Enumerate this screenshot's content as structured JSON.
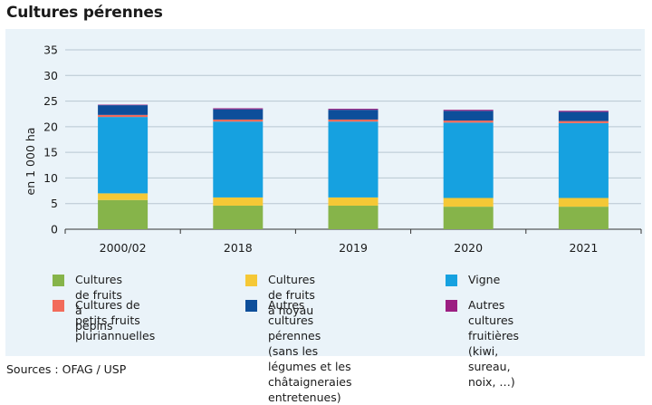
{
  "title": "Cultures pérennes",
  "source": "Sources : OFAG / USP",
  "chart_data": {
    "type": "bar",
    "stacked": true,
    "title": "Cultures pérennes",
    "xlabel": "",
    "ylabel": "en 1 000 ha",
    "ylim": [
      0,
      35
    ],
    "yticks": [
      0,
      5,
      10,
      15,
      20,
      25,
      30,
      35
    ],
    "grid": true,
    "categories": [
      "2000/02",
      "2018",
      "2019",
      "2020",
      "2021"
    ],
    "series": [
      {
        "name": "Cultures de fruits à pépins",
        "color": "#86b44a",
        "values": [
          5.7,
          4.6,
          4.6,
          4.4,
          4.4
        ]
      },
      {
        "name": "Cultures de fruits à noyau",
        "color": "#f5c836",
        "values": [
          1.3,
          1.6,
          1.6,
          1.7,
          1.7
        ]
      },
      {
        "name": "Vigne",
        "color": "#16a1e0",
        "values": [
          14.9,
          14.8,
          14.8,
          14.7,
          14.6
        ]
      },
      {
        "name": "Cultures de petits fruits pluriannuelles",
        "color": "#f26b5b",
        "values": [
          0.4,
          0.4,
          0.4,
          0.4,
          0.4
        ]
      },
      {
        "name": "Autres cultures pérennes (sans les légumes et les châtaigneraies entretenues)",
        "color": "#0d4e9a",
        "values": [
          1.9,
          2.0,
          1.9,
          1.9,
          1.8
        ]
      },
      {
        "name": "Autres cultures fruitières (kiwi, sureau, noix, …)",
        "color": "#9c1f82",
        "values": [
          0.1,
          0.2,
          0.2,
          0.2,
          0.2
        ]
      }
    ]
  },
  "legend": {
    "items": [
      {
        "label": "Cultures de fruits à pépins",
        "color": "#86b44a"
      },
      {
        "label": "Cultures de fruits à noyau",
        "color": "#f5c836"
      },
      {
        "label": "Vigne",
        "color": "#16a1e0"
      },
      {
        "label": "Cultures de petits fruits\npluriannuelles",
        "color": "#f26b5b"
      },
      {
        "label": "Autres cultures pérennes\n(sans les légumes et les\nchâtaigneraies entretenues)",
        "color": "#0d4e9a"
      },
      {
        "label": "Autres cultures fruitières\n(kiwi, sureau, noix, …)",
        "color": "#9c1f82"
      }
    ]
  }
}
